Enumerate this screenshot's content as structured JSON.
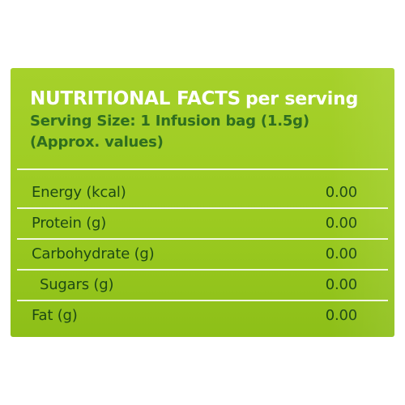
{
  "nutrition": {
    "title_main": "NUTRITIONAL FACTS",
    "title_suffix": "per serving",
    "serving_size": "Serving Size: 1 Infusion bag (1.5g)",
    "approx_note": "(Approx. values)",
    "rows": [
      {
        "label": "Energy (kcal)",
        "value": "0.00"
      },
      {
        "label": "Protein (g)",
        "value": "0.00"
      },
      {
        "label": "Carbohydrate (g)",
        "value": "0.00"
      },
      {
        "label": "Sugars (g)",
        "value": "0.00"
      },
      {
        "label": "Fat (g)",
        "value": "0.00"
      }
    ]
  },
  "colors": {
    "panel_green": "#9ccb21",
    "title_text": "#ffffff",
    "body_text": "#1d4a14"
  }
}
